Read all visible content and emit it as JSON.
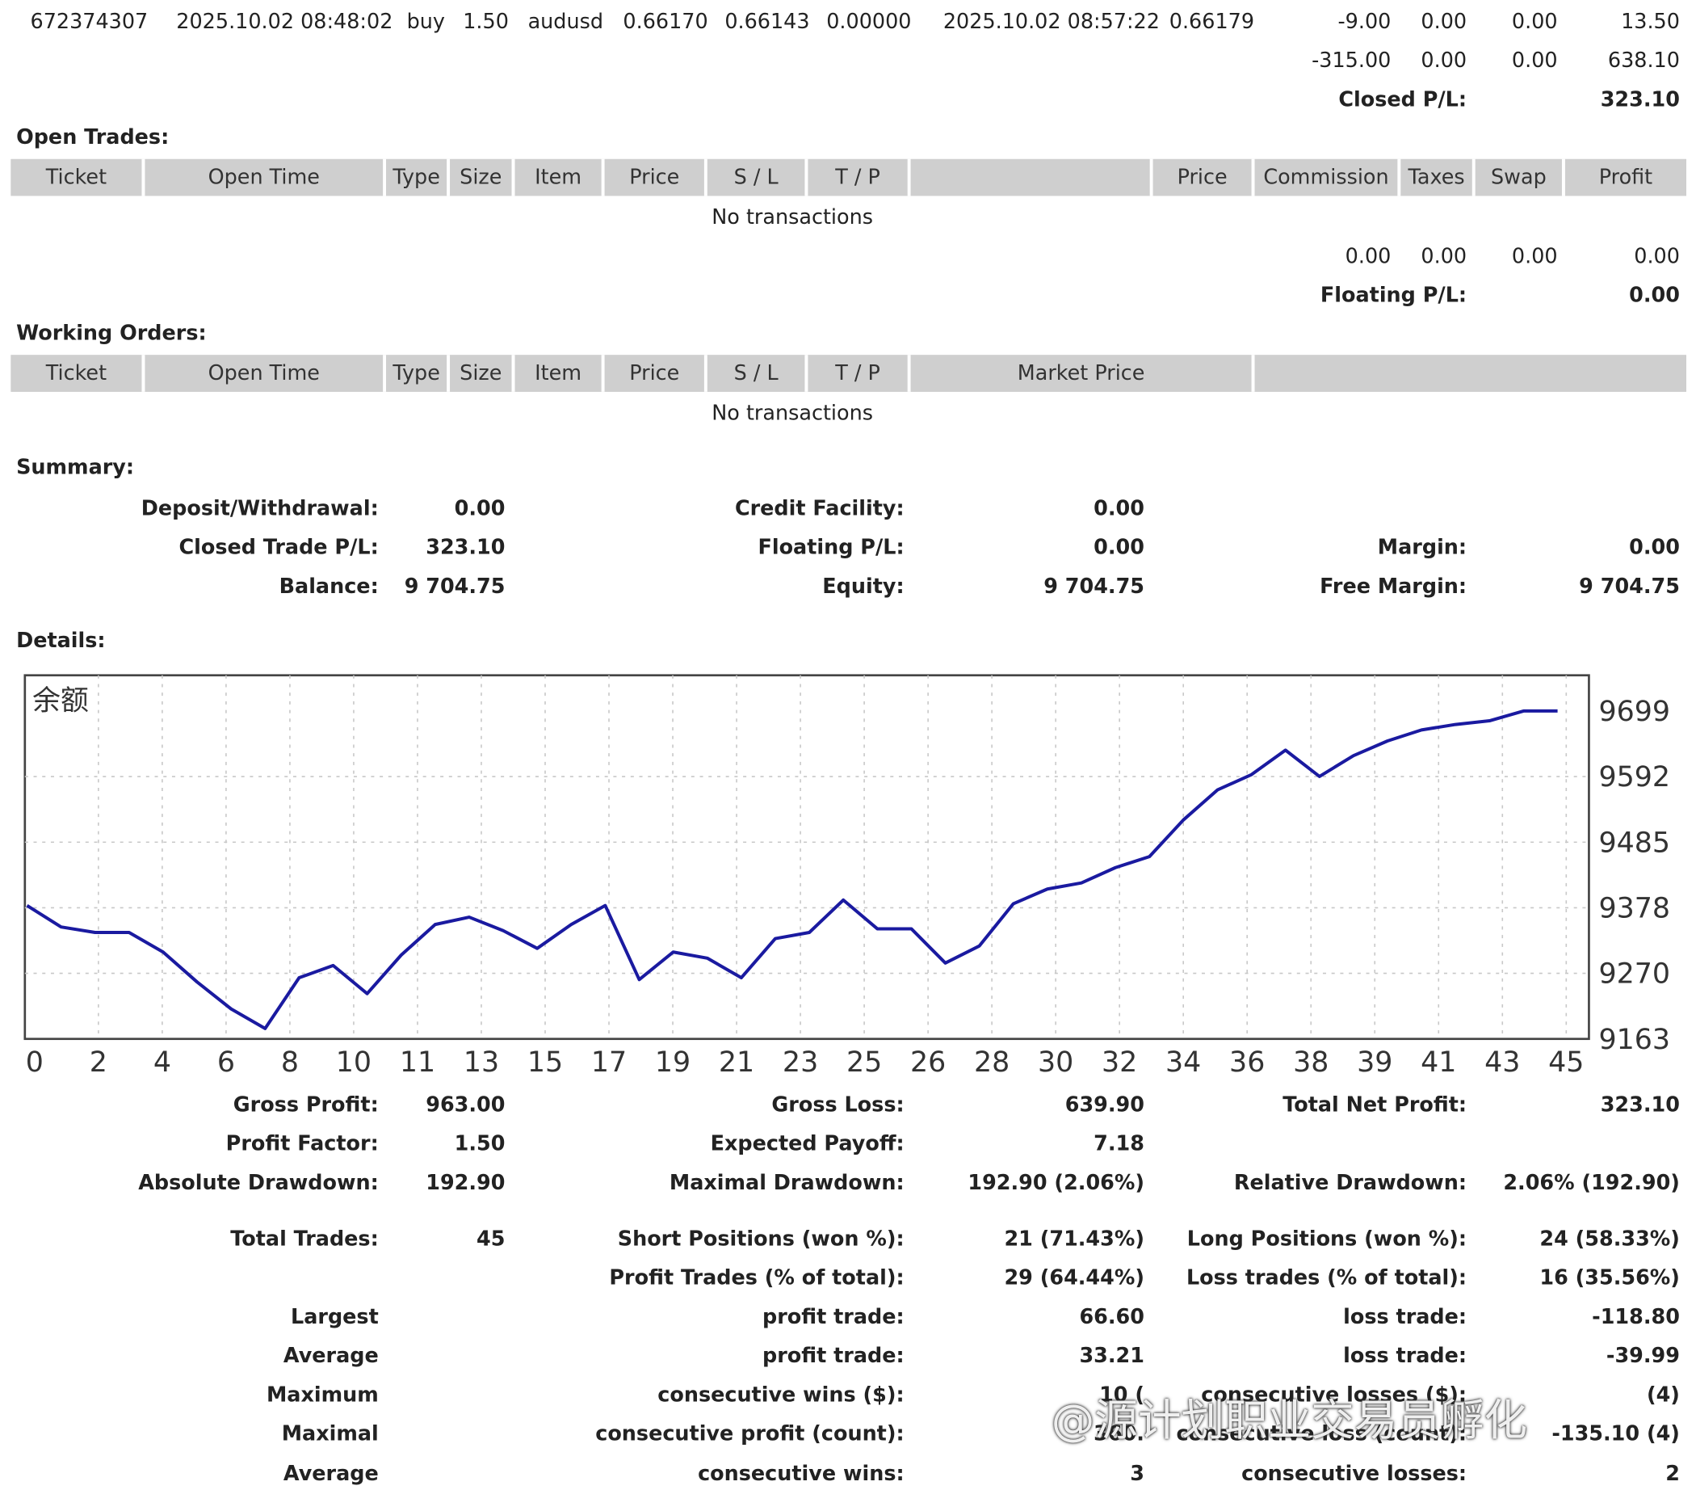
{
  "closed_trade": {
    "ticket": "672374307",
    "open_time": "2025.10.02 08:48:02",
    "type": "buy",
    "size": "1.50",
    "item": "audusd",
    "price": "0.66170",
    "sl": "0.66143",
    "tp": "0.00000",
    "close_time": "2025.10.02 08:57:22",
    "close_price": "0.66179",
    "commission": "-9.00",
    "taxes": "0.00",
    "swap": "0.00",
    "profit": "13.50"
  },
  "closed_totals": {
    "commission": "-315.00",
    "taxes": "0.00",
    "swap": "0.00",
    "profit": "638.10",
    "pl_label": "Closed P/L:",
    "pl_value": "323.10"
  },
  "open_trades": {
    "title": "Open Trades:",
    "headers": [
      "Ticket",
      "Open Time",
      "Type",
      "Size",
      "Item",
      "Price",
      "S / L",
      "T / P",
      "",
      "Price",
      "Commission",
      "Taxes",
      "Swap",
      "Profit"
    ],
    "empty_text": "No transactions",
    "totals": [
      "0.00",
      "0.00",
      "0.00",
      "0.00"
    ],
    "pl_label": "Floating P/L:",
    "pl_value": "0.00"
  },
  "working_orders": {
    "title": "Working Orders:",
    "headers": [
      "Ticket",
      "Open Time",
      "Type",
      "Size",
      "Item",
      "Price",
      "S / L",
      "T / P",
      "Market Price",
      ""
    ],
    "empty_text": "No transactions"
  },
  "summary": {
    "title": "Summary:",
    "deposit_label": "Deposit/Withdrawal:",
    "deposit_value": "0.00",
    "credit_label": "Credit Facility:",
    "credit_value": "0.00",
    "closed_pl_label": "Closed Trade P/L:",
    "closed_pl_value": "323.10",
    "floating_label": "Floating P/L:",
    "floating_value": "0.00",
    "margin_label": "Margin:",
    "margin_value": "0.00",
    "balance_label": "Balance:",
    "balance_value": "9 704.75",
    "equity_label": "Equity:",
    "equity_value": "9 704.75",
    "free_margin_label": "Free Margin:",
    "free_margin_value": "9 704.75"
  },
  "details": {
    "title": "Details:",
    "rows": [
      [
        "Gross Profit:",
        "963.00",
        "Gross Loss:",
        "639.90",
        "Total Net Profit:",
        "323.10"
      ],
      [
        "Profit Factor:",
        "1.50",
        "Expected Payoff:",
        "7.18",
        "",
        ""
      ],
      [
        "Absolute Drawdown:",
        "192.90",
        "Maximal Drawdown:",
        "192.90 (2.06%)",
        "Relative Drawdown:",
        "2.06% (192.90)"
      ],
      [
        "Total Trades:",
        "45",
        "Short Positions (won %):",
        "21 (71.43%)",
        "Long Positions (won %):",
        "24 (58.33%)"
      ],
      [
        "",
        "",
        "Profit Trades (% of total):",
        "29 (64.44%)",
        "Loss trades (% of total):",
        "16 (35.56%)"
      ],
      [
        "Largest",
        "",
        "profit trade:",
        "66.60",
        "loss trade:",
        "-118.80"
      ],
      [
        "Average",
        "",
        "profit trade:",
        "33.21",
        "loss trade:",
        "-39.99"
      ],
      [
        "Maximum",
        "",
        "consecutive wins ($):",
        "10 (",
        "consecutive losses ($):",
        "(4)"
      ],
      [
        "Maximal",
        "",
        "consecutive profit (count):",
        "360.",
        "consecutive loss (count):",
        "-135.10 (4)"
      ],
      [
        "Average",
        "",
        "consecutive wins:",
        "3",
        "consecutive losses:",
        "2"
      ]
    ]
  },
  "watermark": "@源计划职业交易员孵化",
  "chart_data": {
    "type": "line",
    "title": "余额",
    "xlabel": "",
    "ylabel": "",
    "x_tick_labels": [
      "0",
      "2",
      "4",
      "6",
      "8",
      "10",
      "11",
      "13",
      "15",
      "17",
      "19",
      "21",
      "23",
      "25",
      "26",
      "28",
      "30",
      "32",
      "34",
      "36",
      "38",
      "39",
      "41",
      "43",
      "45"
    ],
    "y_tick_labels": [
      "9699",
      "9592",
      "9485",
      "9378",
      "9270",
      "9163"
    ],
    "xlim": [
      0,
      45
    ],
    "ylim": [
      9163,
      9699
    ],
    "grid": true,
    "series": [
      {
        "name": "",
        "color": "#1a1aa0",
        "x": [
          0,
          1,
          2,
          3,
          4,
          5,
          6,
          7,
          8,
          9,
          10,
          11,
          12,
          13,
          14,
          15,
          16,
          17,
          18,
          19,
          20,
          21,
          22,
          23,
          24,
          25,
          26,
          27,
          28,
          29,
          30,
          31,
          32,
          33,
          34,
          35,
          36,
          37,
          38,
          39,
          40,
          41,
          42,
          43,
          44,
          45
        ],
        "y": [
          9381,
          9346,
          9337,
          9337,
          9305,
          9256,
          9212,
          9180,
          9263,
          9283,
          9237,
          9300,
          9350,
          9362,
          9340,
          9311,
          9350,
          9381,
          9260,
          9305,
          9295,
          9263,
          9327,
          9337,
          9390,
          9343,
          9343,
          9287,
          9315,
          9384,
          9408,
          9418,
          9443,
          9461,
          9521,
          9570,
          9595,
          9635,
          9592,
          9626,
          9650,
          9668,
          9677,
          9683,
          9699,
          9699
        ]
      }
    ]
  }
}
